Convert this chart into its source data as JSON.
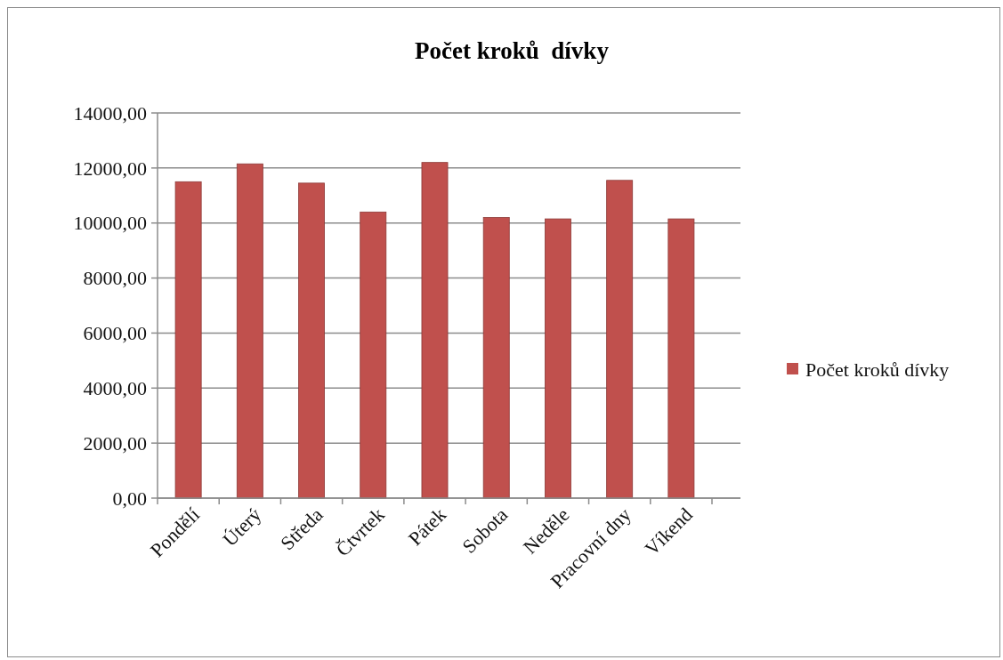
{
  "chart_data": {
    "type": "bar",
    "title": "Počet kroků  dívky",
    "categories": [
      "Pondělí",
      "Úterý",
      "Středa",
      "Čtvrtek",
      "Pátek",
      "Sobota",
      "Neděle",
      "Pracovní dny",
      "Víkend"
    ],
    "series": [
      {
        "name": "Počet kroků dívky",
        "color": "#c0504d",
        "values": [
          11500,
          12150,
          11450,
          10400,
          12200,
          10200,
          10150,
          11550,
          10150
        ]
      }
    ],
    "ylim": [
      0,
      14000
    ],
    "yticks": [
      {
        "value": 0,
        "label": "0,00"
      },
      {
        "value": 2000,
        "label": "2000,00"
      },
      {
        "value": 4000,
        "label": "4000,00"
      },
      {
        "value": 6000,
        "label": "6000,00"
      },
      {
        "value": 8000,
        "label": "8000,00"
      },
      {
        "value": 10000,
        "label": "10000,00"
      },
      {
        "value": 12000,
        "label": "12000,00"
      },
      {
        "value": 14000,
        "label": "14000,00"
      }
    ],
    "grid": "y",
    "legend": "right"
  }
}
